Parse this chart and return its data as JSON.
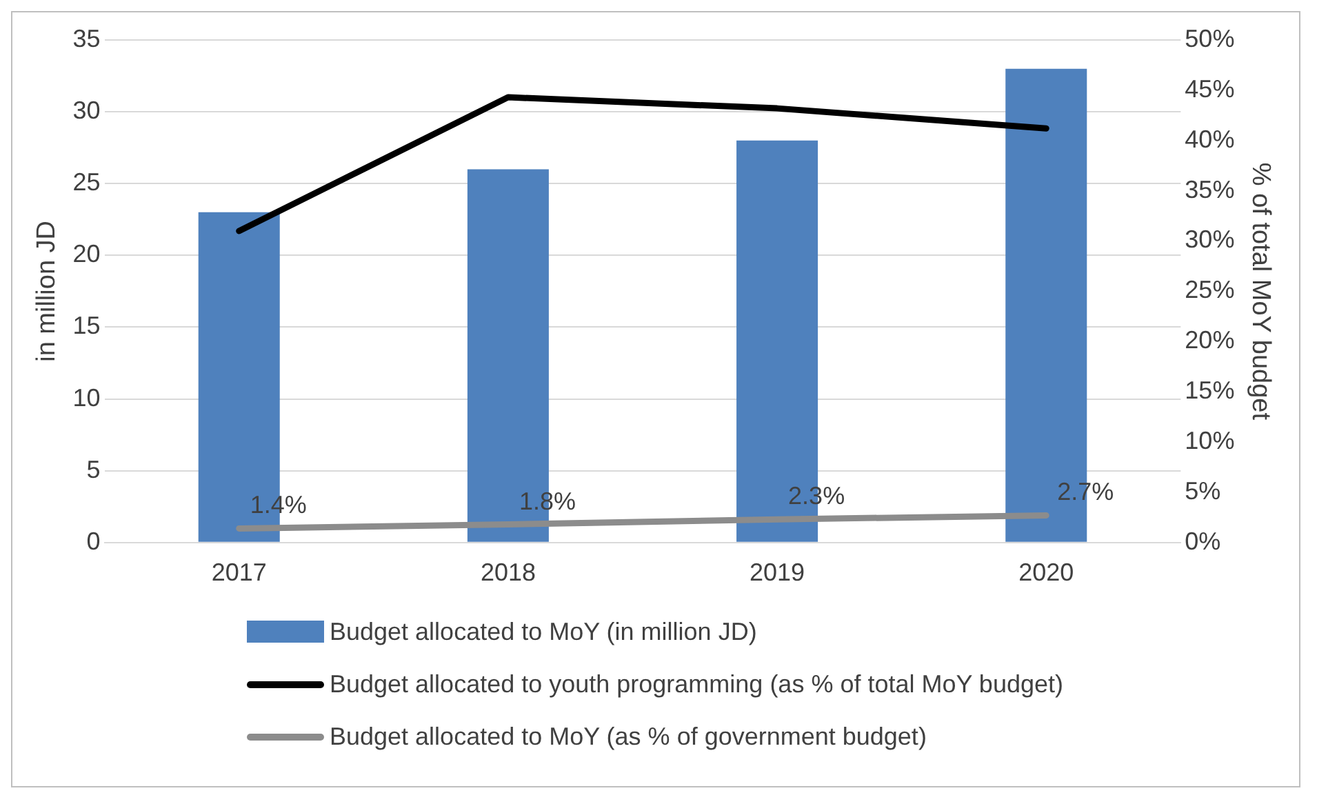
{
  "chart_data": {
    "type": "bar",
    "categories": [
      "2017",
      "2018",
      "2019",
      "2020"
    ],
    "series": [
      {
        "name": "Budget allocated to MoY (in million JD)",
        "color": "#4f81bd",
        "values": [
          23,
          26,
          28,
          33
        ]
      },
      {
        "name": "Budget allocated to youth programming (as % of total MoY budget)",
        "type": "line",
        "axis": "y2",
        "color": "#000000",
        "values": [
          31,
          44.3,
          43.2,
          41.2
        ]
      },
      {
        "name": "Budget allocated to MoY (as % of government budget)",
        "type": "line",
        "axis": "y2",
        "color": "#8c8c8c",
        "values": [
          1.4,
          1.8,
          2.3,
          2.7
        ],
        "value_labels": [
          "1.4%",
          "1.8%",
          "2.3%",
          "2.7%"
        ]
      }
    ],
    "ylabel": "in million JD",
    "y2label": "% of total MoY budget",
    "ylim": [
      0,
      35
    ],
    "yticks": [
      0,
      5,
      10,
      15,
      20,
      25,
      30,
      35
    ],
    "y2lim": [
      0,
      50
    ],
    "y2ticks": [
      {
        "value": 0,
        "label": "0%"
      },
      {
        "value": 5,
        "label": "5%"
      },
      {
        "value": 10,
        "label": "10%"
      },
      {
        "value": 15,
        "label": "15%"
      },
      {
        "value": 20,
        "label": "20%"
      },
      {
        "value": 25,
        "label": "25%"
      },
      {
        "value": 30,
        "label": "30%"
      },
      {
        "value": 35,
        "label": "35%"
      },
      {
        "value": 40,
        "label": "40%"
      },
      {
        "value": 45,
        "label": "45%"
      },
      {
        "value": 50,
        "label": "50%"
      }
    ],
    "grid": "y",
    "legend": "bottom",
    "marker": "none",
    "line_style": "solid"
  }
}
